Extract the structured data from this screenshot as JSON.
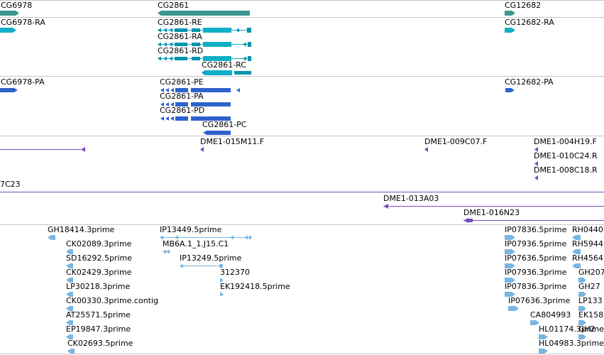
{
  "colors": {
    "gene": "#3a9690",
    "transcript_dark": "#0094ad",
    "transcript_light": "#11aec8",
    "protein": "#2d62cc",
    "clone": "#7a4bbd",
    "est": "#7ab6e0",
    "separator": "#c6c6c6"
  },
  "tracks": {
    "genes": {
      "cg6978": "CG6978",
      "cg2861": "CG2861",
      "cg12682": "CG12682"
    },
    "transcripts": {
      "cg6978_ra": "CG6978-RA",
      "cg2861_re": "CG2861-RE",
      "cg2861_ra": "CG2861-RA",
      "cg2861_rd": "CG2861-RD",
      "cg2861_rc": "CG2861-RC",
      "cg12682_ra": "CG12682-RA"
    },
    "proteins": {
      "cg6978_pa": "CG6978-PA",
      "cg2861_pe": "CG2861-PE",
      "cg2861_pa": "CG2861-PA",
      "cg2861_pd": "CG2861-PD",
      "cg2861_pc": "CG2861-PC",
      "cg12682_pa": "CG12682-PA"
    },
    "clone_ends": {
      "c015m11": "DME1-015M11.F",
      "c009c07": "DME1-009C07.F",
      "c004h19": "DME1-004H19.F",
      "c010c24": "DME1-010C24.R",
      "c008c18": "DME1-008C18.R"
    },
    "clones": {
      "c7c23": "7C23",
      "c013a03": "DME1-013A03",
      "c016n23": "DME1-016N23"
    },
    "ests": {
      "gh18414": "GH18414.3prime",
      "ck02089": "CK02089.3prime",
      "sd16292": "SD16292.5prime",
      "ck02429": "CK02429.3prime",
      "lp30218": "LP30218.3prime",
      "ck00330": "CK00330.3prime.contig",
      "at25571": "AT25571.5prime",
      "ep19847": "EP19847.3prime",
      "ck02693": "CK02693.5prime",
      "ip13449": "IP13449.5prime",
      "mb6a": "MB6A.1_1.J15.C1",
      "ip13249": "IP13249.5prime",
      "e312370": "312370",
      "ek192418": "EK192418.5prime",
      "ip07836_5": "IP07836.5prime",
      "ip07936_5": "IP07936.5prime",
      "ip07636_5": "IP07636.5prime",
      "ip07936_3": "IP07936.3prime",
      "ip07836_3": "IP07836.3prime",
      "ip07636_3": "IP07636.3prime",
      "ca804993": "CA804993",
      "hl01174": "HL01174.3prime",
      "hl04983": "HL04983.3prime",
      "rh0440": "RH0440",
      "rh5944": "RH5944",
      "rh4564": "RH4564",
      "gh207": "GH207",
      "gh27": "GH27",
      "lp133": "LP133",
      "ek158": "EK158",
      "gh2": "GH2"
    }
  }
}
